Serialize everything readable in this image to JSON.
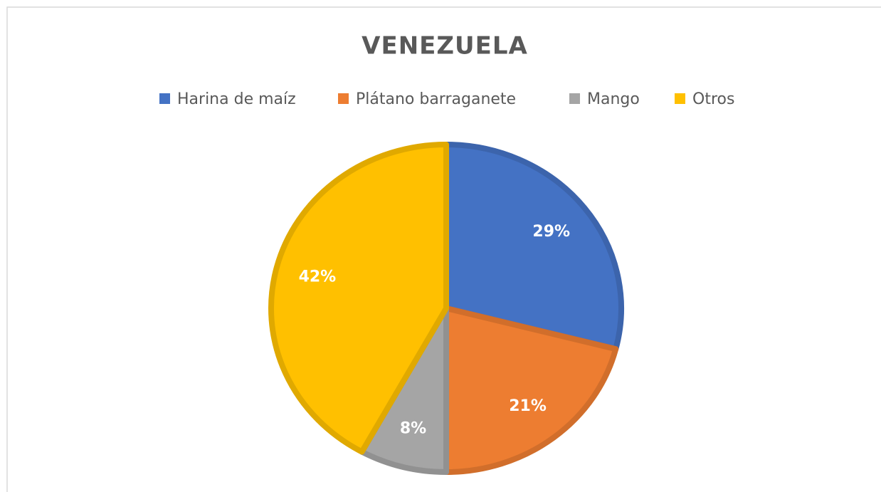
{
  "chart_data": {
    "type": "pie",
    "title": "VENEZUELA",
    "categories": [
      "Harina de maíz",
      "Plátano barraganete",
      "Mango",
      "Otros"
    ],
    "values": [
      29,
      21,
      8,
      42
    ],
    "value_labels": [
      "29%",
      "21%",
      "8%",
      "42%"
    ],
    "colors": [
      "#4472c4",
      "#ed7d31",
      "#a5a5a5",
      "#ffc000"
    ],
    "legend": "top"
  }
}
